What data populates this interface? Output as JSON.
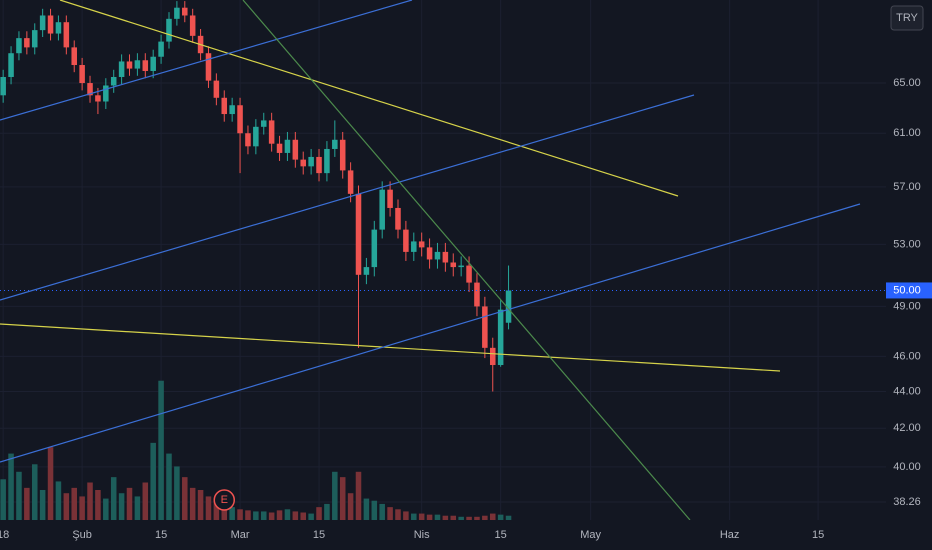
{
  "chart_data": {
    "type": "candlestick",
    "currency": "TRY",
    "log_scale": true,
    "grid": true,
    "up_color": "#26a69a",
    "down_color": "#ef5350",
    "volume_up_color": "#1d5e5b",
    "volume_down_color": "#7a3237",
    "xlim": [
      -0.4,
      111.8
    ],
    "ylim": [
      37.4,
      72.2
    ],
    "volume_lim": [
      0,
      140
    ],
    "xticks": [
      {
        "value": 0,
        "label": "18"
      },
      {
        "value": 10,
        "label": "Şub"
      },
      {
        "value": 20,
        "label": "15"
      },
      {
        "value": 30,
        "label": "Mar"
      },
      {
        "value": 40,
        "label": "15"
      },
      {
        "value": 53,
        "label": "Nis"
      },
      {
        "value": 63,
        "label": "15"
      },
      {
        "value": 74.4,
        "label": "May"
      },
      {
        "value": 92,
        "label": "Haz"
      },
      {
        "value": 103.2,
        "label": "15"
      }
    ],
    "yticks": [
      {
        "value": 65,
        "label": "65.00"
      },
      {
        "value": 61,
        "label": "61.00"
      },
      {
        "value": 57,
        "label": "57.00"
      },
      {
        "value": 53,
        "label": "53.00"
      },
      {
        "value": 49,
        "label": "49.00"
      },
      {
        "value": 46,
        "label": "46.00"
      },
      {
        "value": 44,
        "label": "44.00"
      },
      {
        "value": 42,
        "label": "42.00"
      },
      {
        "value": 40,
        "label": "40.00"
      },
      38.26
    ],
    "last_price": {
      "value": 50,
      "label": "50.00"
    },
    "earnings_marker": {
      "x": 28,
      "label": "E"
    },
    "open": [
      64,
      65.5,
      67.5,
      68.8,
      68.0,
      69.5,
      70.8,
      69.2,
      70.2,
      68.0,
      66.5,
      65.0,
      64.0,
      63.5,
      64.8,
      65.5,
      66.8,
      66.2,
      66.9,
      66.0,
      67.2,
      68.5,
      70.5,
      71.5,
      70.8,
      69.0,
      67.5,
      65.2,
      63.8,
      62.5,
      63.2,
      61.0,
      60.0,
      61.5,
      62.0,
      60.2,
      59.5,
      60.5,
      59.0,
      58.5,
      59.2,
      58.0,
      59.8,
      60.5,
      58.2,
      56.5,
      51.0,
      51.5,
      54.0,
      56.8,
      55.5,
      54.0,
      52.5,
      53.2,
      52.8,
      52.0,
      52.5,
      51.8,
      51.5,
      51.6,
      50.5,
      49.0,
      46.5,
      45.5,
      48.0
    ],
    "high": [
      66.1,
      68.1,
      69.4,
      69.4,
      70.1,
      71.4,
      71.4,
      70.8,
      70.8,
      68.6,
      67.1,
      65.6,
      64.6,
      65.4,
      66.1,
      67.4,
      67.4,
      67.5,
      67.5,
      67.8,
      69.1,
      71.1,
      72.1,
      72.1,
      71.4,
      69.6,
      68.1,
      65.8,
      64.4,
      63.8,
      63.8,
      61.6,
      62.1,
      62.6,
      62.6,
      60.8,
      61.1,
      61.1,
      59.6,
      59.8,
      59.8,
      60.4,
      62.0,
      61.1,
      58.8,
      57.1,
      52.1,
      54.6,
      57.4,
      57.4,
      56.1,
      54.6,
      53.8,
      53.8,
      53.4,
      53.1,
      53.1,
      52.4,
      52.2,
      52.2,
      51.1,
      49.6,
      47.1,
      49.4,
      51.6
    ],
    "low": [
      63.4,
      64.9,
      66.9,
      67.4,
      67.4,
      68.9,
      68.6,
      68.6,
      67.4,
      65.9,
      64.4,
      63.4,
      62.5,
      62.9,
      64.2,
      64.9,
      65.6,
      65.6,
      65.4,
      65.4,
      66.6,
      67.9,
      69.9,
      70.2,
      68.4,
      66.9,
      64.6,
      63.2,
      61.9,
      61.9,
      58.0,
      59.4,
      59.4,
      60.9,
      59.6,
      58.9,
      58.9,
      58.4,
      57.9,
      57.9,
      57.4,
      57.4,
      59.2,
      57.6,
      55.9,
      46.5,
      50.4,
      50.9,
      53.4,
      54.9,
      53.4,
      51.9,
      51.9,
      52.2,
      51.4,
      51.4,
      51.2,
      50.9,
      50.9,
      49.9,
      48.4,
      45.9,
      44.0,
      45.4,
      47.6
    ],
    "close": [
      65.5,
      67.5,
      68.8,
      68.0,
      69.5,
      70.8,
      69.2,
      70.2,
      68.0,
      66.5,
      65.0,
      64.0,
      63.5,
      64.8,
      65.5,
      66.8,
      66.2,
      66.9,
      66.0,
      67.2,
      68.5,
      70.5,
      71.5,
      70.8,
      69.0,
      67.5,
      65.2,
      63.8,
      62.5,
      63.2,
      61.0,
      60.0,
      61.5,
      62.0,
      60.2,
      59.5,
      60.5,
      59.0,
      58.5,
      59.2,
      58.0,
      59.8,
      60.5,
      58.2,
      56.5,
      51.0,
      51.5,
      54.0,
      56.8,
      55.5,
      54.0,
      52.5,
      53.2,
      52.8,
      52.0,
      52.5,
      51.8,
      51.5,
      51.6,
      50.5,
      49.0,
      46.5,
      45.5,
      48.8,
      50.0
    ],
    "volume": [
      38,
      62,
      45,
      30,
      52,
      28,
      68,
      36,
      25,
      30,
      22,
      35,
      28,
      20,
      40,
      25,
      30,
      22,
      35,
      72,
      130,
      62,
      50,
      40,
      30,
      28,
      22,
      18,
      15,
      12,
      10,
      9,
      8,
      8,
      7,
      9,
      10,
      8,
      7,
      6,
      12,
      15,
      45,
      40,
      25,
      45,
      20,
      18,
      15,
      12,
      10,
      8,
      6,
      6,
      5,
      5,
      4,
      4,
      3,
      3,
      3,
      4,
      6,
      5,
      4
    ]
  }
}
